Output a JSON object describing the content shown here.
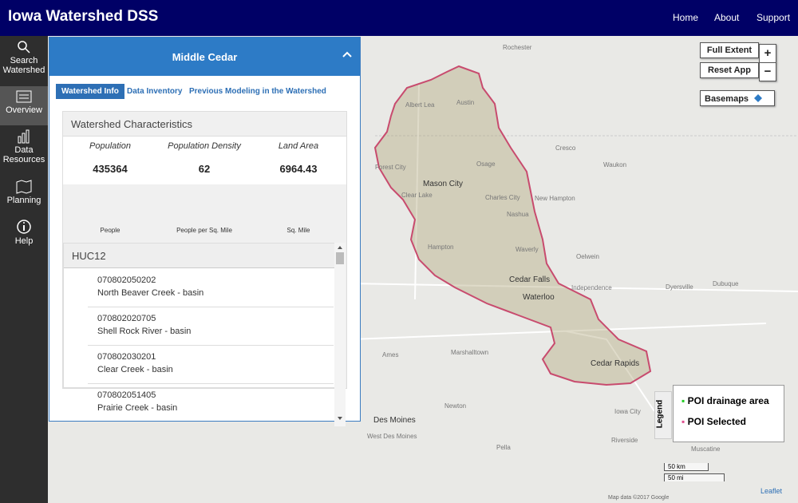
{
  "header": {
    "title": "Iowa Watershed DSS",
    "nav": [
      "Home",
      "About",
      "Support"
    ]
  },
  "sidebar": {
    "items": [
      "Search Watershed",
      "Overview",
      "Data Resources",
      "Planning",
      "Help"
    ]
  },
  "panel": {
    "title": "Middle Cedar",
    "tabs": [
      "Watershed Info",
      "Data Inventory",
      "Previous Modeling in the Watershed"
    ],
    "card": {
      "title": "Watershed Characteristics",
      "stats": [
        {
          "label": "Population",
          "value": 435364,
          "unit": "People"
        },
        {
          "label": "Population Density",
          "value": 62,
          "unit": "People per Sq. Mile"
        },
        {
          "label": "Land Area",
          "value": 6964.43,
          "unit": "Sq. Mile"
        }
      ]
    },
    "huc12": {
      "title": "HUC12",
      "items": [
        {
          "code": "070802050202",
          "name": "North Beaver Creek - basin"
        },
        {
          "code": "070802020705",
          "name": "Shell Rock River - basin"
        },
        {
          "code": "070802030201",
          "name": "Clear Creek - basin"
        },
        {
          "code": "070802051405",
          "name": "Prairie Creek - basin"
        }
      ]
    }
  },
  "map": {
    "controls": {
      "full_extent": "Full Extent",
      "reset": "Reset App",
      "zoom_in": "+",
      "zoom_out": "−",
      "basemaps": "Basemaps"
    },
    "legend": {
      "tab": "Legend",
      "items": [
        "POI drainage area",
        "POI Selected"
      ]
    },
    "scale": [
      "50 km",
      "50 mi"
    ],
    "attribution": "Leaflet",
    "map_data": "Map data ©2017 Google",
    "labels": [
      "Rochester",
      "Albert Lea",
      "Austin",
      "Cresco",
      "Waukon",
      "Forest City",
      "Mason City",
      "Osage",
      "Clear Lake",
      "Charles City",
      "New Hampton",
      "Nashua",
      "Hampton",
      "Waverly",
      "Oelwein",
      "Cedar Falls",
      "Waterloo",
      "Independence",
      "Dyersville",
      "Dubuque",
      "Ames",
      "Marshalltown",
      "Cedar Rapids",
      "Newton",
      "Iowa City",
      "Des Moines",
      "West Des Moines",
      "Riverside",
      "Muscatine",
      "Pella"
    ]
  }
}
